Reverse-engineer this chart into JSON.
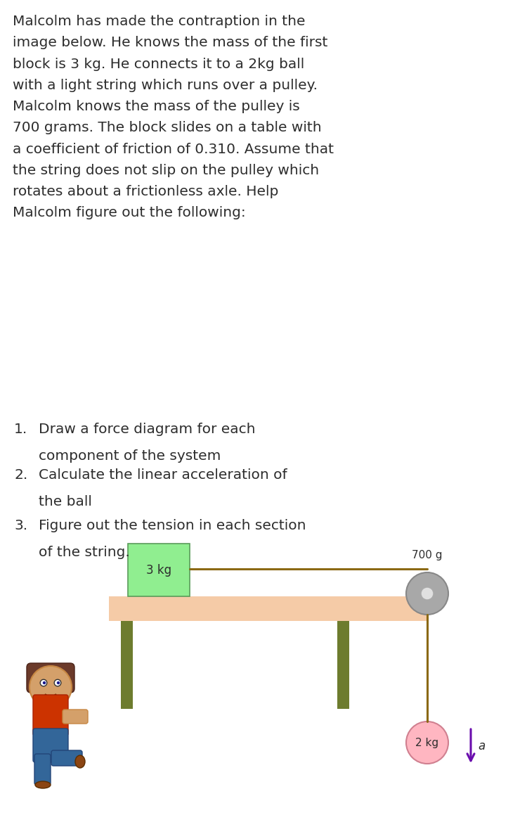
{
  "bg_color": "#ffffff",
  "text_color": "#2d2d2d",
  "paragraph_text": "Malcolm has made the contraption in the\nimage below. He knows the mass of the first\nblock is 3 kg. He connects it to a 2kg ball\nwith a light string which runs over a pulley.\nMalcolm knows the mass of the pulley is\n700 grams. The block slides on a table with\na coefficient of friction of 0.310. Assume that\nthe string does not slip on the pulley which\nrotates about a frictionless axle. Help\nMalcolm figure out the following:",
  "list_nums": [
    "1.",
    "2.",
    "3."
  ],
  "list_line1": [
    "Draw a force diagram for each",
    "Calculate the linear acceleration of",
    "Figure out the tension in each section"
  ],
  "list_line2": [
    "component of the system",
    "the ball",
    "of the string."
  ],
  "table_color": "#f5cba7",
  "table_leg_color": "#6d7c2e",
  "block_color": "#90ee90",
  "block_border_color": "#5a9c5a",
  "pulley_color": "#a8a8a8",
  "string_color": "#8B6914",
  "ball_color": "#ffb6c1",
  "ball_border_color": "#d08090",
  "arrow_color": "#6a0dad",
  "label_color": "#2d2d2d",
  "font_family": "DejaVu Sans",
  "main_font_size": 14.5,
  "list_font_size": 14.5
}
